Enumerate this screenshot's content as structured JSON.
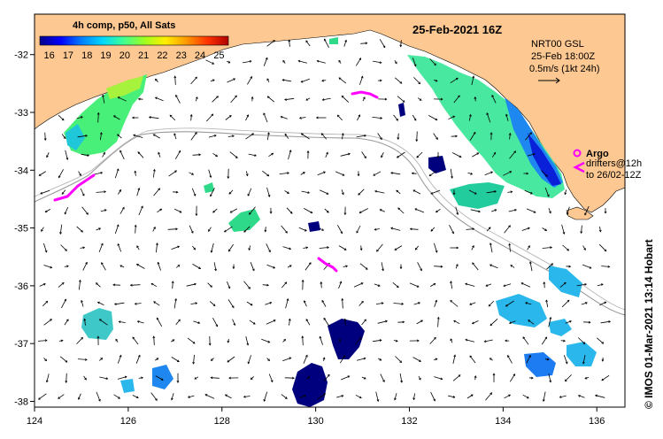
{
  "colorbar": {
    "title": "4h comp, p50, All Sats",
    "ticks": [
      "16",
      "17",
      "18",
      "19",
      "20",
      "21",
      "22",
      "23",
      "24",
      "25"
    ],
    "range": [
      15.5,
      25.5
    ],
    "colors": [
      "#00008c",
      "#0000ff",
      "#0080ff",
      "#00d8ff",
      "#40ff90",
      "#a0ff20",
      "#ffee00",
      "#ff9900",
      "#ff3300",
      "#b00000"
    ]
  },
  "title_date": "25-Feb-2021 16Z",
  "legend": {
    "line1": "NRT00 GSL",
    "line2": "25-Feb 18:00Z",
    "line3": "0.5m/s (1kt 24h)"
  },
  "argo": {
    "label": "Argo",
    "drifters_line1": "drifters@12h",
    "drifters_line2": "to 26/02-12Z",
    "argo_color": "#ff00ff",
    "drifter_color": "#ff00ff"
  },
  "credit": "© IMOS 01-Mar-2021 13:14 Hobart",
  "map": {
    "lon_range": [
      124,
      136.6
    ],
    "lat_range": [
      -38.1,
      -31.3
    ],
    "x_ticks": [
      "124",
      "126",
      "128",
      "130",
      "132",
      "134",
      "136"
    ],
    "y_ticks": [
      "-32",
      "-33",
      "-34",
      "-35",
      "-36",
      "-37",
      "-38"
    ],
    "land_color": "#fdc891",
    "ocean_color": "#ffffff"
  }
}
